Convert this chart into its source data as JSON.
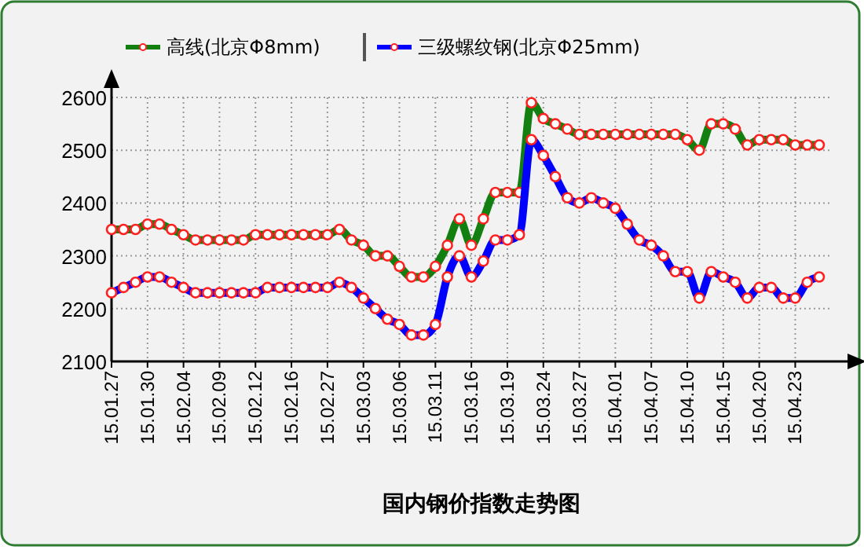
{
  "chart_data": {
    "type": "line",
    "title": "国内钢价指数走势图",
    "categories": [
      "15.01.27",
      null,
      null,
      "15.01.30",
      null,
      null,
      "15.02.04",
      null,
      null,
      "15.02.09",
      null,
      null,
      "15.02.12",
      null,
      null,
      "15.02.16",
      null,
      null,
      "15.02.27",
      null,
      null,
      "15.03.03",
      null,
      null,
      "15.03.06",
      null,
      null,
      "15.03.11",
      null,
      null,
      "15.03.16",
      null,
      null,
      "15.03.19",
      null,
      null,
      "15.03.24",
      null,
      null,
      "15.03.27",
      null,
      null,
      "15.04.01",
      null,
      null,
      "15.04.07",
      null,
      null,
      "15.04.10",
      null,
      null,
      "15.04.15",
      null,
      null,
      "15.04.20",
      null,
      null,
      "15.04.23",
      null,
      null
    ],
    "series": [
      {
        "name": "高线(北京Φ8mm)",
        "color": "#118011",
        "values": [
          2350,
          2350,
          2350,
          2360,
          2360,
          2350,
          2340,
          2330,
          2330,
          2330,
          2330,
          2330,
          2340,
          2340,
          2340,
          2340,
          2340,
          2340,
          2340,
          2350,
          2330,
          2320,
          2300,
          2300,
          2280,
          2260,
          2260,
          2280,
          2320,
          2370,
          2320,
          2370,
          2420,
          2420,
          2420,
          2590,
          2560,
          2550,
          2540,
          2530,
          2530,
          2530,
          2530,
          2530,
          2530,
          2530,
          2530,
          2530,
          2520,
          2500,
          2550,
          2550,
          2540,
          2510,
          2520,
          2520,
          2520,
          2510,
          2510,
          2510
        ]
      },
      {
        "name": "三级螺纹钢(北京Φ25mm)",
        "color": "#0000ff",
        "values": [
          2230,
          2240,
          2250,
          2260,
          2260,
          2250,
          2240,
          2230,
          2230,
          2230,
          2230,
          2230,
          2230,
          2240,
          2240,
          2240,
          2240,
          2240,
          2240,
          2250,
          2240,
          2220,
          2200,
          2180,
          2170,
          2150,
          2150,
          2170,
          2260,
          2300,
          2260,
          2290,
          2330,
          2330,
          2340,
          2520,
          2490,
          2450,
          2410,
          2400,
          2410,
          2400,
          2390,
          2360,
          2330,
          2320,
          2300,
          2270,
          2270,
          2220,
          2270,
          2260,
          2250,
          2220,
          2240,
          2240,
          2220,
          2220,
          2250,
          2260
        ]
      }
    ],
    "ylim": [
      2100,
      2600
    ],
    "yticks": [
      2100,
      2200,
      2300,
      2400,
      2500,
      2600
    ],
    "grid": true,
    "legend": "top",
    "marker": "circle",
    "line_style": "solid"
  }
}
